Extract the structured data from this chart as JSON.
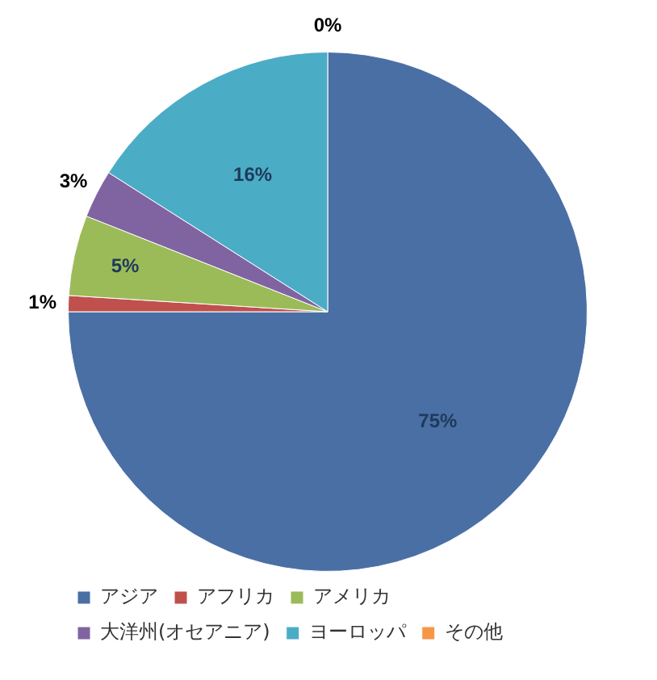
{
  "chart_data": {
    "type": "pie",
    "categories": [
      "アジア",
      "アフリカ",
      "アメリカ",
      "大洋州(オセアニア)",
      "ヨーロッパ",
      "その他"
    ],
    "values": [
      75,
      1,
      5,
      3,
      16,
      0
    ],
    "colors": [
      "#4a6fa5",
      "#c0504d",
      "#9bbb59",
      "#8064a2",
      "#4bacc6",
      "#f79646"
    ],
    "value_labels": [
      "75%",
      "1%",
      "5%",
      "3%",
      "16%",
      "0%"
    ],
    "legend": "bottom"
  }
}
